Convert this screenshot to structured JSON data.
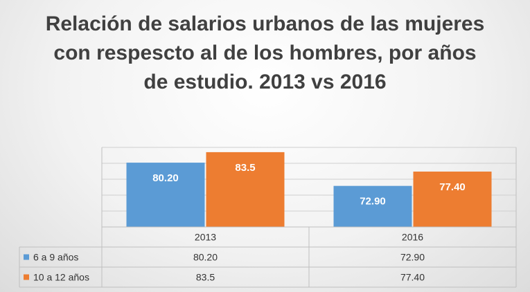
{
  "chart_data": {
    "type": "bar",
    "title": "Relación de salarios urbanos de las mujeres con respescto al de los hombres, por años de estudio. 2013 vs 2016",
    "categories": [
      "2013",
      "2016"
    ],
    "series": [
      {
        "name": "6 a 9 años",
        "values": [
          80.2,
          72.9
        ],
        "labels": [
          "80.20",
          "72.90"
        ],
        "color": "#5b9bd5"
      },
      {
        "name": "10 a 12 años",
        "values": [
          83.5,
          77.4
        ],
        "labels": [
          "83.5",
          "77.40"
        ],
        "color": "#ed7d31"
      }
    ],
    "ylim": [
      60,
      85
    ],
    "grid": true,
    "legend": "data-table-left",
    "xlabel": "",
    "ylabel": ""
  }
}
